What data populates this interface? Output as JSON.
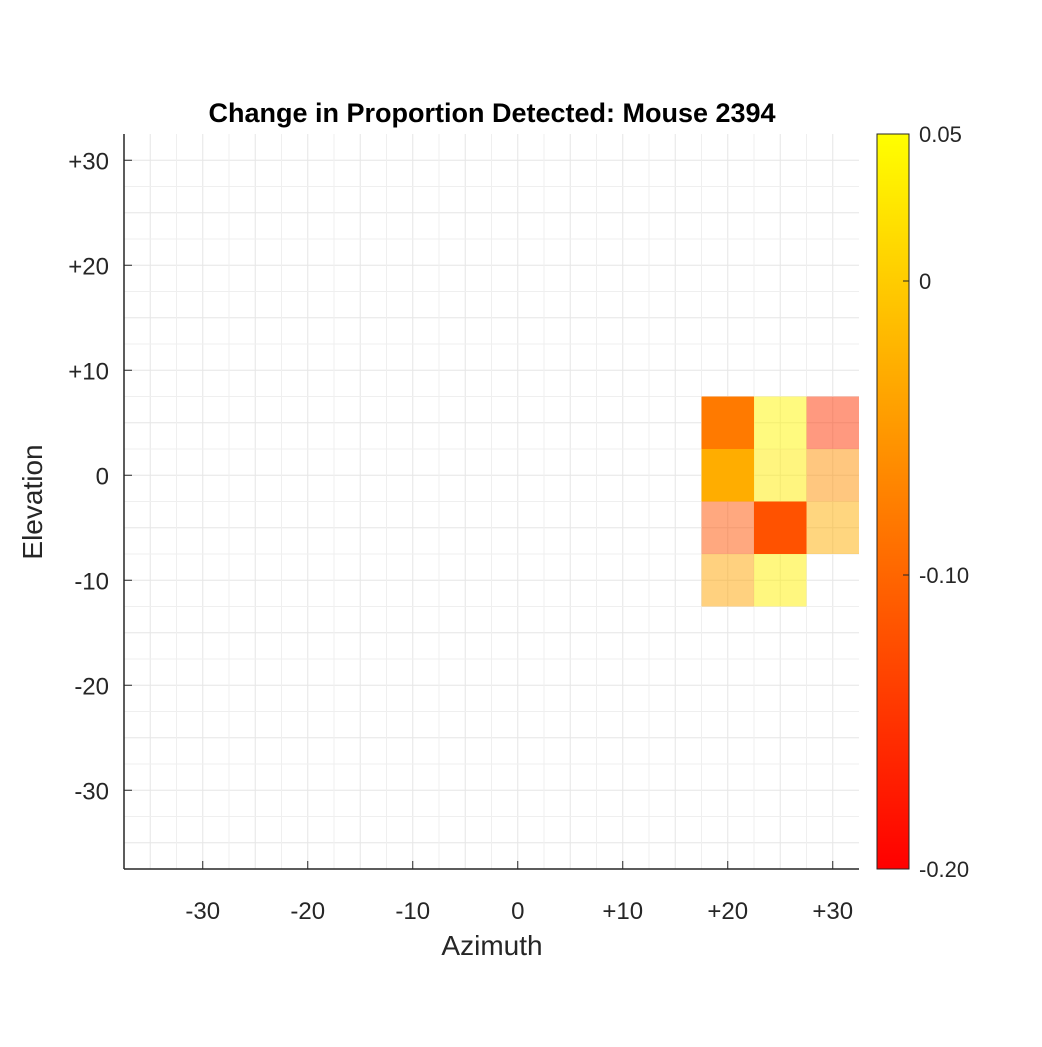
{
  "chart_data": {
    "type": "heatmap",
    "title": "Change in Proportion Detected: Mouse 2394",
    "xlabel": "Azimuth",
    "ylabel": "Elevation",
    "xlim": [
      -37.5,
      32.5
    ],
    "ylim": [
      -37.5,
      32.5
    ],
    "x_ticks": [
      -30,
      -20,
      -10,
      0,
      10,
      20,
      30
    ],
    "x_tick_labels": [
      "-30",
      "-20",
      "-10",
      "0",
      "+10",
      "+20",
      "+30"
    ],
    "y_ticks": [
      30,
      20,
      10,
      0,
      -10,
      -20,
      -30
    ],
    "y_tick_labels": [
      "+30",
      "+20",
      "+10",
      "0",
      "-10",
      "-20",
      "-30"
    ],
    "grid": true,
    "cell_size": 5,
    "cells": [
      {
        "x": 20,
        "y": 5,
        "value": -0.08
      },
      {
        "x": 25,
        "y": 5,
        "value": 0.04
      },
      {
        "x": 30,
        "y": 5,
        "value": -0.15
      },
      {
        "x": 20,
        "y": 0,
        "value": -0.03
      },
      {
        "x": 25,
        "y": 0,
        "value": 0.03
      },
      {
        "x": 30,
        "y": 0,
        "value": -0.06
      },
      {
        "x": 20,
        "y": -5,
        "value": -0.12
      },
      {
        "x": 25,
        "y": -5,
        "value": -0.12
      },
      {
        "x": 30,
        "y": -5,
        "value": -0.03
      },
      {
        "x": 20,
        "y": -10,
        "value": -0.04
      },
      {
        "x": 25,
        "y": -10,
        "value": 0.035
      }
    ],
    "colorbar": {
      "min": -0.2,
      "max": 0.05,
      "ticks": [
        0.05,
        0,
        -0.1,
        -0.2
      ],
      "tick_labels": [
        "0.05",
        "0",
        "-0.10",
        "-0.20"
      ],
      "colormap": "autumn",
      "color_low": "#ff0000",
      "color_high": "#ffff00"
    }
  }
}
